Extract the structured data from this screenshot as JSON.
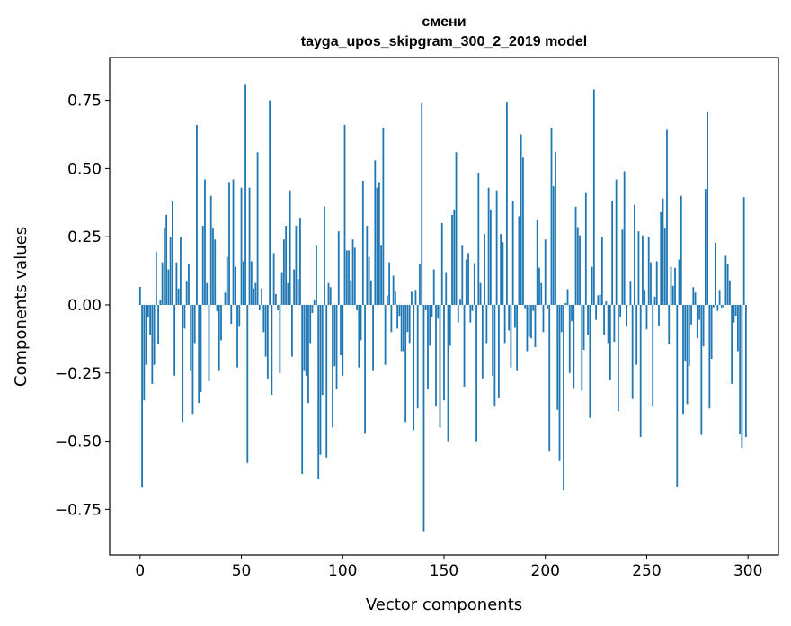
{
  "chart_data": {
    "type": "bar",
    "title": [
      "смени",
      "tayga_upos_skipgram_300_2_2019 model"
    ],
    "xlabel": "Vector components",
    "ylabel": "Components values",
    "xlim": [
      -15,
      315
    ],
    "ylim": [
      -0.917,
      0.907
    ],
    "xticks": [
      0,
      50,
      100,
      150,
      200,
      250,
      300
    ],
    "xtick_labels": [
      "0",
      "50",
      "100",
      "150",
      "200",
      "250",
      "300"
    ],
    "yticks": [
      -0.75,
      -0.5,
      -0.25,
      0,
      0.25,
      0.5,
      0.75
    ],
    "ytick_labels": [
      "−0.75",
      "−0.50",
      "−0.25",
      "0.00",
      "0.25",
      "0.50",
      "0.75"
    ],
    "grid": false,
    "bar_color": "#1f77b4",
    "values": [
      0.066,
      -0.67,
      -0.35,
      -0.22,
      -0.045,
      -0.11,
      -0.29,
      -0.22,
      0.195,
      -0.145,
      0.018,
      0.156,
      0.28,
      0.33,
      0.13,
      0.25,
      0.38,
      -0.26,
      0.156,
      0.06,
      0.25,
      -0.43,
      -0.087,
      0.088,
      0.15,
      -0.24,
      -0.4,
      -0.14,
      0.66,
      -0.36,
      -0.32,
      0.29,
      0.46,
      0.08,
      -0.28,
      0.4,
      0.28,
      0.24,
      -0.023,
      -0.24,
      -0.13,
      0.0,
      0.045,
      0.176,
      0.45,
      -0.07,
      0.46,
      0.14,
      -0.23,
      -0.08,
      0.43,
      0.16,
      0.81,
      -0.58,
      0.43,
      0.16,
      0.06,
      0.08,
      0.56,
      -0.02,
      0.06,
      -0.1,
      -0.19,
      -0.27,
      0.75,
      -0.33,
      0.19,
      0.04,
      -0.02,
      -0.25,
      0.12,
      0.24,
      0.29,
      0.08,
      0.42,
      -0.19,
      0.13,
      0.29,
      0.095,
      0.32,
      -0.62,
      -0.24,
      -0.26,
      -0.36,
      -0.14,
      -0.03,
      0.02,
      0.22,
      -0.64,
      -0.55,
      -0.33,
      0.36,
      -0.56,
      0.08,
      0.065,
      -0.45,
      -0.225,
      -0.31,
      0.27,
      -0.185,
      -0.26,
      0.66,
      0.2,
      0.2,
      0.09,
      0.24,
      0.21,
      -0.02,
      -0.23,
      -0.13,
      0.455,
      -0.47,
      0.29,
      0.176,
      0.09,
      -0.24,
      0.53,
      0.43,
      0.45,
      0.22,
      0.65,
      -0.22,
      0.035,
      0.156,
      -0.1,
      0.107,
      0.048,
      -0.087,
      -0.04,
      -0.17,
      -0.17,
      -0.43,
      -0.1,
      -0.14,
      0.048,
      -0.46,
      0.055,
      -0.38,
      0.15,
      0.74,
      -0.83,
      -0.02,
      -0.31,
      -0.15,
      -0.045,
      0.13,
      -0.37,
      -0.05,
      -0.45,
      0.3,
      -0.35,
      0.12,
      -0.5,
      -0.15,
      0.33,
      0.35,
      0.56,
      -0.065,
      0.022,
      0.22,
      -0.3,
      0.166,
      0.19,
      -0.065,
      -0.022,
      0.153,
      -0.5,
      0.485,
      0.08,
      -0.27,
      0.26,
      -0.14,
      0.43,
      0.35,
      -0.26,
      -0.37,
      0.42,
      -0.34,
      0.26,
      0.23,
      -0.14,
      0.745,
      -0.094,
      -0.23,
      0.38,
      -0.084,
      -0.24,
      0.325,
      0.625,
      0.54,
      -0.012,
      -0.17,
      -0.117,
      -0.123,
      -0.022,
      -0.155,
      0.31,
      0.136,
      0.08,
      -0.1,
      0.24,
      -0.015,
      -0.535,
      0.65,
      0.435,
      0.56,
      -0.385,
      -0.57,
      -0.1,
      -0.68,
      0.007,
      0.058,
      -0.25,
      -0.06,
      -0.305,
      0.36,
      0.285,
      0.255,
      -0.315,
      -0.165,
      0.41,
      -0.11,
      -0.415,
      0.14,
      0.79,
      -0.055,
      0.035,
      0.038,
      0.25,
      -0.11,
      0.013,
      -0.14,
      -0.275,
      0.38,
      -0.136,
      0.46,
      -0.39,
      -0.045,
      0.276,
      0.49,
      -0.08,
      0.0,
      0.088,
      -0.345,
      0.367,
      -0.22,
      0.27,
      -0.485,
      0.255,
      0.055,
      -0.09,
      0.25,
      0.156,
      -0.37,
      0.03,
      0.16,
      -0.077,
      0.34,
      0.39,
      0.28,
      0.645,
      -0.145,
      0.14,
      0.07,
      0.136,
      -0.667,
      0.166,
      0.4,
      -0.4,
      -0.205,
      -0.364,
      -0.223,
      -0.072,
      0.065,
      0.045,
      -0.123,
      -0.055,
      -0.477,
      -0.152,
      0.425,
      0.71,
      -0.38,
      -0.198,
      -0.009,
      0.228,
      -0.022,
      0.055,
      -0.009,
      -0.009,
      0.18,
      0.15,
      0.09,
      -0.29,
      -0.065,
      -0.04,
      -0.17,
      -0.475,
      -0.525,
      0.395,
      -0.485
    ]
  }
}
